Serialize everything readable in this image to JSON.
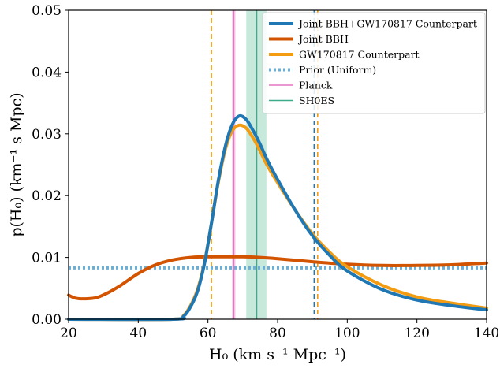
{
  "chart_data": {
    "type": "line",
    "xlabel": "H₀ (km s⁻¹ Mpc⁻¹)",
    "ylabel": "p(H₀) (km⁻¹ s Mpc)",
    "xlim": [
      20,
      140
    ],
    "ylim": [
      0,
      0.05
    ],
    "x_ticks": [
      "20",
      "40",
      "60",
      "80",
      "100",
      "120",
      "140"
    ],
    "y_ticks": [
      "0.00",
      "0.01",
      "0.02",
      "0.03",
      "0.04",
      "0.05"
    ],
    "legend_position": "top-right",
    "series": [
      {
        "name": "Joint BBH+GW170817 Counterpart",
        "color": "#1f77b4",
        "x": [
          50,
          53,
          55,
          57,
          59,
          61,
          63,
          65,
          67,
          69,
          71,
          73,
          75,
          77,
          80,
          85,
          90,
          95,
          100,
          110,
          120,
          130,
          140
        ],
        "y": [
          0.0,
          0.0005,
          0.002,
          0.0045,
          0.009,
          0.0155,
          0.0225,
          0.028,
          0.0315,
          0.0329,
          0.0323,
          0.0305,
          0.0283,
          0.0258,
          0.0226,
          0.0177,
          0.0135,
          0.0103,
          0.0078,
          0.0048,
          0.0031,
          0.0022,
          0.0015
        ]
      },
      {
        "name": "Joint BBH",
        "color": "#d35400",
        "x": [
          20,
          22,
          25,
          28,
          31,
          35,
          40,
          45,
          50,
          55,
          60,
          65,
          70,
          75,
          80,
          90,
          100,
          110,
          120,
          130,
          140
        ],
        "y": [
          0.0039,
          0.0034,
          0.0033,
          0.0035,
          0.0042,
          0.0055,
          0.0074,
          0.0088,
          0.0096,
          0.01,
          0.0101,
          0.0101,
          0.0101,
          0.01,
          0.0098,
          0.0093,
          0.0089,
          0.0087,
          0.0087,
          0.0088,
          0.0091
        ]
      },
      {
        "name": "GW170817 Counterpart",
        "color": "#f39c12",
        "x": [
          50,
          53,
          55,
          57,
          59,
          61,
          63,
          65,
          67,
          69,
          71,
          73,
          75,
          77,
          80,
          85,
          90,
          95,
          100,
          110,
          120,
          130,
          140
        ],
        "y": [
          0.0,
          0.0006,
          0.0022,
          0.0048,
          0.0092,
          0.0155,
          0.0222,
          0.0275,
          0.0305,
          0.0314,
          0.0309,
          0.0293,
          0.0272,
          0.0249,
          0.0221,
          0.0177,
          0.0138,
          0.0108,
          0.0085,
          0.0055,
          0.0036,
          0.0026,
          0.0018
        ]
      }
    ],
    "prior": {
      "name": "Prior (Uniform)",
      "y": 0.0083,
      "color": "#6baed6"
    },
    "bands": [
      {
        "name": "Planck",
        "center": 67.4,
        "low": 66.9,
        "high": 67.9,
        "color": "#e377c2",
        "fill": "#f2bfe3"
      },
      {
        "name": "SH0ES",
        "center": 74.0,
        "low": 71.0,
        "high": 76.8,
        "color": "#3daa8a",
        "fill": "#b9e3d3"
      }
    ],
    "vlines": [
      {
        "x": 61.0,
        "color": "#f39c12"
      },
      {
        "x": 91.5,
        "color": "#f39c12"
      },
      {
        "x": 90.5,
        "color": "#1f77b4"
      }
    ]
  }
}
